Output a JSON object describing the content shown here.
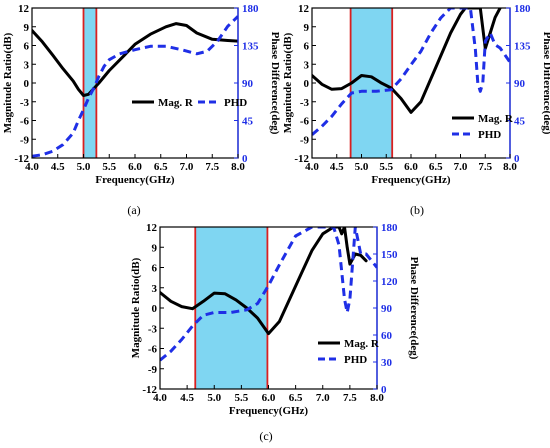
{
  "chart_data": [
    {
      "type": "line",
      "panel_label": "(a)",
      "xlabel": "Frequency(GHz)",
      "ylabel": "Magnitude Ratio(dB)",
      "y2label": "Phase Difference(deg)",
      "xlim": [
        4.0,
        8.0
      ],
      "ylim": [
        -12,
        12
      ],
      "y2lim": [
        0,
        180
      ],
      "xticks": [
        "4.0",
        "4.5",
        "5.0",
        "5.5",
        "6.0",
        "6.5",
        "7.0",
        "7.5",
        "8.0"
      ],
      "yticks": [
        "-12",
        "-9",
        "-6",
        "-3",
        "0",
        "3",
        "6",
        "9",
        "12"
      ],
      "y2ticks": [
        "0",
        "45",
        "90",
        "135",
        "180"
      ],
      "band": [
        5.0,
        5.25
      ],
      "legend": [
        "Mag. R",
        "PHD"
      ],
      "legend_position": "middle-right",
      "colors": {
        "mag": "#000000",
        "phd": "#1f2fe6",
        "band": "#7fd6f2",
        "bandline": "#d92020",
        "right_axis": "#1f2fe6"
      },
      "series": [
        {
          "name": "Mag. R",
          "axis": "left",
          "style": "solid",
          "x": [
            4.0,
            4.2,
            4.4,
            4.6,
            4.8,
            4.9,
            5.0,
            5.1,
            5.3,
            5.5,
            5.8,
            6.0,
            6.3,
            6.6,
            6.8,
            7.0,
            7.2,
            7.5,
            7.8,
            8.0
          ],
          "y": [
            8.4,
            6.6,
            4.5,
            2.3,
            0.3,
            -1.0,
            -2.0,
            -1.8,
            0.0,
            2.0,
            4.5,
            6.2,
            7.8,
            9.0,
            9.5,
            9.2,
            8.0,
            7.0,
            6.8,
            6.7
          ]
        },
        {
          "name": "PHD",
          "axis": "right",
          "style": "dashed",
          "x": [
            4.0,
            4.2,
            4.4,
            4.6,
            4.8,
            4.9,
            5.0,
            5.1,
            5.2,
            5.3,
            5.4,
            5.5,
            5.7,
            6.0,
            6.3,
            6.6,
            6.9,
            7.2,
            7.4,
            7.6,
            7.8,
            8.0
          ],
          "y": [
            2,
            4,
            8,
            16,
            30,
            45,
            58,
            72,
            84,
            98,
            110,
            118,
            125,
            130,
            134,
            134,
            130,
            125,
            128,
            140,
            158,
            170
          ]
        }
      ]
    },
    {
      "type": "line",
      "panel_label": "(b)",
      "xlabel": "Frequency(GHz)",
      "ylabel": "Magnitude Ratio(dB)",
      "y2label": "Phase Difference(deg)",
      "xlim": [
        4.0,
        8.0
      ],
      "ylim": [
        -12,
        12
      ],
      "y2lim": [
        0,
        180
      ],
      "xticks": [
        "4.0",
        "4.5",
        "5.0",
        "5.5",
        "6.0",
        "6.5",
        "7.0",
        "7.5",
        "8.0"
      ],
      "yticks": [
        "-12",
        "-9",
        "-6",
        "-3",
        "0",
        "3",
        "6",
        "9",
        "12"
      ],
      "y2ticks": [
        "0",
        "45",
        "90",
        "135",
        "180"
      ],
      "band": [
        4.78,
        5.62
      ],
      "legend": [
        "Mag. R",
        "PHD"
      ],
      "legend_position": "bottom-right",
      "colors": {
        "mag": "#000000",
        "phd": "#1f2fe6",
        "band": "#7fd6f2",
        "bandline": "#d92020",
        "right_axis": "#1f2fe6"
      },
      "series": [
        {
          "name": "Mag. R",
          "axis": "left",
          "style": "solid",
          "x": [
            4.0,
            4.2,
            4.4,
            4.6,
            4.8,
            5.0,
            5.2,
            5.4,
            5.6,
            5.8,
            6.0,
            6.2,
            6.5,
            6.8,
            7.0,
            7.1,
            7.2,
            7.3,
            7.4,
            7.5,
            7.6,
            7.7,
            7.8
          ],
          "y": [
            1.2,
            -0.2,
            -1.0,
            -0.9,
            0.0,
            1.2,
            1.0,
            0.0,
            -0.8,
            -2.5,
            -4.7,
            -3.0,
            2.5,
            8.0,
            11.0,
            12.0,
            12.0,
            12.0,
            12.0,
            5.5,
            8.0,
            10.5,
            12.0
          ]
        },
        {
          "name": "PHD",
          "axis": "right",
          "style": "dashed",
          "x": [
            4.0,
            4.2,
            4.4,
            4.6,
            4.8,
            5.0,
            5.3,
            5.6,
            5.8,
            6.0,
            6.2,
            6.4,
            6.6,
            6.8,
            7.0,
            7.2,
            7.3,
            7.35,
            7.4,
            7.45,
            7.5,
            7.6,
            7.7,
            7.8,
            8.0
          ],
          "y": [
            28,
            38,
            50,
            65,
            78,
            80,
            80,
            82,
            95,
            112,
            128,
            150,
            168,
            180,
            180,
            180,
            130,
            90,
            80,
            90,
            140,
            150,
            136,
            132,
            115
          ]
        }
      ]
    },
    {
      "type": "line",
      "panel_label": "(c)",
      "xlabel": "Frequency(GHz)",
      "ylabel": "Magnitude Ratio(dB)",
      "y2label": "Phase Difference(deg)",
      "xlim": [
        4.0,
        8.0
      ],
      "ylim": [
        -12,
        12
      ],
      "y2lim": [
        0,
        180
      ],
      "xticks": [
        "4.0",
        "4.5",
        "5.0",
        "5.5",
        "6.0",
        "6.5",
        "7.0",
        "7.5",
        "8.0"
      ],
      "yticks": [
        "-12",
        "-9",
        "-6",
        "-3",
        "0",
        "3",
        "6",
        "9",
        "12"
      ],
      "y2ticks": [
        "0",
        "30",
        "60",
        "90",
        "120",
        "150",
        "180"
      ],
      "band": [
        4.65,
        5.98
      ],
      "legend": [
        "Mag. R",
        "PHD"
      ],
      "legend_position": "bottom-right",
      "colors": {
        "mag": "#000000",
        "phd": "#1f2fe6",
        "band": "#7fd6f2",
        "bandline": "#d92020",
        "right_axis": "#1f2fe6"
      },
      "series": [
        {
          "name": "Mag. R",
          "axis": "left",
          "style": "solid",
          "x": [
            4.0,
            4.2,
            4.4,
            4.6,
            4.8,
            5.0,
            5.2,
            5.4,
            5.6,
            5.8,
            6.0,
            6.2,
            6.4,
            6.6,
            6.8,
            7.0,
            7.2,
            7.3,
            7.35,
            7.4,
            7.45,
            7.5,
            7.6,
            7.7,
            7.8
          ],
          "y": [
            2.3,
            1.0,
            0.2,
            -0.1,
            1.0,
            2.2,
            2.1,
            1.2,
            0.0,
            -1.5,
            -3.8,
            -2.0,
            1.5,
            5.0,
            8.5,
            11.0,
            12.0,
            12.0,
            11.0,
            12.0,
            9.0,
            6.5,
            8.0,
            7.8,
            7.0
          ]
        },
        {
          "name": "PHD",
          "axis": "right",
          "style": "dashed",
          "x": [
            4.0,
            4.2,
            4.4,
            4.6,
            4.8,
            5.0,
            5.3,
            5.6,
            5.8,
            6.0,
            6.2,
            6.5,
            6.8,
            7.0,
            7.2,
            7.3,
            7.4,
            7.45,
            7.5,
            7.6,
            7.7,
            7.8,
            8.0
          ],
          "y": [
            32,
            42,
            55,
            70,
            82,
            85,
            85,
            88,
            95,
            115,
            138,
            170,
            180,
            180,
            180,
            160,
            100,
            85,
            100,
            180,
            150,
            150,
            135
          ]
        }
      ]
    }
  ]
}
